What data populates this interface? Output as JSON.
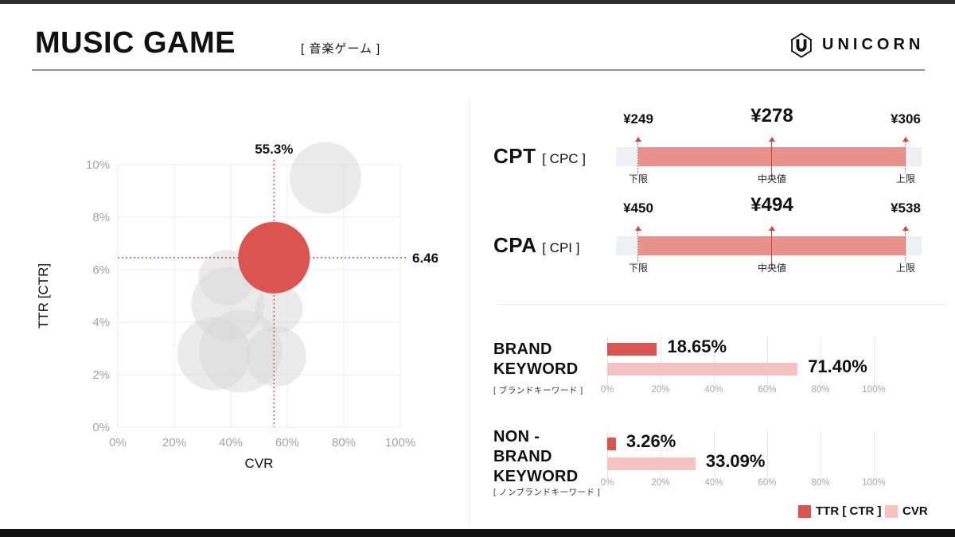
{
  "header": {
    "title": "MUSIC GAME",
    "subtitle": "[ 音楽ゲーム ]",
    "brand_name": "UNICORN"
  },
  "colors": {
    "red": "#db544f",
    "pink": "#f6c3c0",
    "range_fill": "#e9928c",
    "range_track": "#eef1f4",
    "gray_bubble": "#d8d8d8",
    "crosshair_red": "#dd5b4e"
  },
  "chart_data": {
    "bubble": {
      "type": "scatter",
      "xlabel": "CVR",
      "ylabel": "TTR [CTR]",
      "xlim": [
        0,
        100
      ],
      "ylim": [
        0,
        10
      ],
      "x_ticks": [
        "0%",
        "20%",
        "40%",
        "60%",
        "80%",
        "100%"
      ],
      "y_ticks": [
        "0%",
        "2%",
        "4%",
        "6%",
        "8%",
        "10%"
      ],
      "grid": true,
      "crosshair": {
        "x": 55.3,
        "y": 6.46,
        "x_label": "55.3%",
        "y_label": "6.46%"
      },
      "highlight_bubble": {
        "x": 55.3,
        "y": 6.46,
        "r": 45
      },
      "gray_bubbles": [
        {
          "x": 73.5,
          "y": 9.5,
          "r": 45
        },
        {
          "x": 38.5,
          "y": 5.7,
          "r": 35
        },
        {
          "x": 39.0,
          "y": 4.7,
          "r": 46
        },
        {
          "x": 57.0,
          "y": 4.5,
          "r": 30
        },
        {
          "x": 34.0,
          "y": 2.8,
          "r": 46
        },
        {
          "x": 43.5,
          "y": 2.9,
          "r": 52
        },
        {
          "x": 56.0,
          "y": 2.7,
          "r": 38
        }
      ]
    },
    "cpt": {
      "type": "range",
      "label": "CPT",
      "sublabel": "[ CPC ]",
      "lower": {
        "value": "¥249",
        "tag": "下限"
      },
      "median": {
        "value": "¥278",
        "tag": "中央値"
      },
      "upper": {
        "value": "¥306",
        "tag": "上限"
      }
    },
    "cpa": {
      "type": "range",
      "label": "CPA",
      "sublabel": "[ CPI ]",
      "lower": {
        "value": "¥450",
        "tag": "下限"
      },
      "median": {
        "value": "¥494",
        "tag": "中央値"
      },
      "upper": {
        "value": "¥538",
        "tag": "上限"
      }
    },
    "brand_keyword": {
      "type": "bar",
      "title_lines": [
        "BRAND",
        "KEYWORD"
      ],
      "sublabel": "[ ブランドキーワード ]",
      "xlim": [
        0,
        100
      ],
      "ticks": [
        "0%",
        "20%",
        "40%",
        "60%",
        "80%",
        "100%"
      ],
      "series": [
        {
          "name": "TTR [ CTR ]",
          "value": 18.65,
          "label": "18.65%"
        },
        {
          "name": "CVR",
          "value": 71.4,
          "label": "71.40%"
        }
      ]
    },
    "nonbrand_keyword": {
      "type": "bar",
      "title_lines": [
        "NON -",
        "BRAND",
        "KEYWORD"
      ],
      "sublabel": "[ ノンブランドキーワード ]",
      "xlim": [
        0,
        100
      ],
      "ticks": [
        "0%",
        "20%",
        "40%",
        "60%",
        "80%",
        "100%"
      ],
      "series": [
        {
          "name": "TTR [ CTR ]",
          "value": 3.26,
          "label": "3.26%"
        },
        {
          "name": "CVR",
          "value": 33.09,
          "label": "33.09%"
        }
      ]
    }
  },
  "legend": [
    {
      "label": "TTR [ CTR ]",
      "color": "#db544f"
    },
    {
      "label": "CVR",
      "color": "#f6c3c0"
    }
  ]
}
